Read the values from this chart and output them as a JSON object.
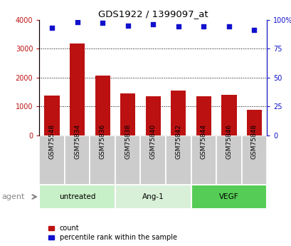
{
  "title": "GDS1922 / 1399097_at",
  "samples": [
    "GSM75548",
    "GSM75834",
    "GSM75836",
    "GSM75838",
    "GSM75840",
    "GSM75842",
    "GSM75844",
    "GSM75846",
    "GSM75848"
  ],
  "counts": [
    1380,
    3180,
    2060,
    1450,
    1360,
    1540,
    1360,
    1390,
    870
  ],
  "percentile_ranks": [
    93,
    98,
    97,
    95,
    96,
    94,
    94,
    94,
    91
  ],
  "group_colors": [
    "#c8f0c8",
    "#d8f0d8",
    "#55cc55"
  ],
  "group_labels": [
    "untreated",
    "Ang-1",
    "VEGF"
  ],
  "group_ranges": [
    [
      0,
      2
    ],
    [
      3,
      5
    ],
    [
      6,
      8
    ]
  ],
  "bar_color": "#bb1111",
  "dot_color": "#1111cc",
  "left_ylim": [
    0,
    4000
  ],
  "right_ylim": [
    0,
    100
  ],
  "left_yticks": [
    0,
    1000,
    2000,
    3000,
    4000
  ],
  "right_yticks": [
    0,
    25,
    50,
    75,
    100
  ],
  "left_yticklabels": [
    "0",
    "1000",
    "2000",
    "3000",
    "4000"
  ],
  "right_yticklabels": [
    "0",
    "25",
    "50",
    "75",
    "100%"
  ],
  "grid_values": [
    1000,
    2000,
    3000
  ],
  "agent_label": "agent",
  "bar_width": 0.6,
  "sample_box_color": "#cccccc",
  "bg_color": "#ffffff"
}
